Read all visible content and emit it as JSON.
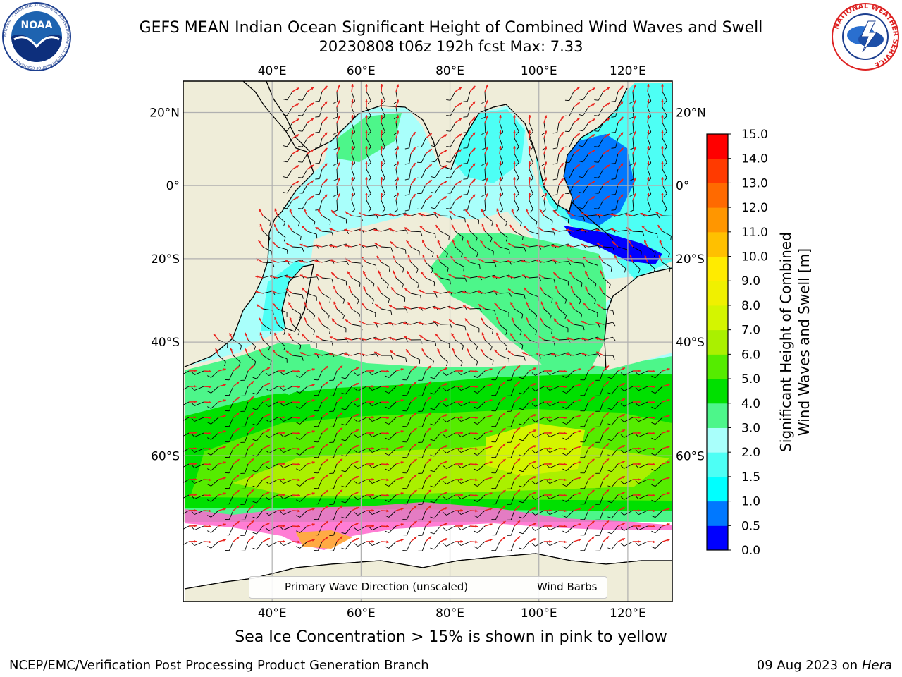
{
  "header": {
    "title_line1": "GEFS MEAN Indian Ocean Significant Height of Combined Wind Waves and Swell",
    "title_line2": "20230808 t06z 192h fcst   Max: 7.33"
  },
  "logos": {
    "noara": "NOAA",
    "nws_ring": "NATIONAL WEATHER SERVICE",
    "noaa_ring": "NATIONAL OCEANIC AND ATMOSPHERIC ADMINISTRATION · U.S. DEPARTMENT OF COMMERCE"
  },
  "map": {
    "lon_ticks": [
      "40°E",
      "60°E",
      "80°E",
      "100°E",
      "120°E"
    ],
    "lat_ticks_left": [
      "20°N",
      "0°",
      "20°S",
      "40°S",
      "60°S"
    ],
    "lat_ticks_right": [
      "20°N",
      "0°",
      "20°S",
      "40°S",
      "60°S"
    ],
    "lon_values": [
      40,
      60,
      80,
      100,
      120
    ],
    "lat_values": [
      20,
      0,
      -20,
      -40,
      -60
    ],
    "extent": {
      "lon_min": 20,
      "lon_max": 130,
      "lat_min": -75,
      "lat_max": 28
    },
    "grid": true,
    "land_color": "#efedd9",
    "arrow_color": "#e8221c",
    "barb_color": "#000000"
  },
  "legend": {
    "wave_direction_label": "Primary Wave Direction (unscaled)",
    "wind_barbs_label": "Wind Barbs",
    "placement": "bottom-center"
  },
  "colorbar": {
    "label_line1": "Significant Height of Combined",
    "label_line2": "Wind Waves and Swell [m]",
    "ticks": [
      "0.0",
      "0.5",
      "1.0",
      "1.5",
      "2.0",
      "3.0",
      "4.0",
      "5.0",
      "6.0",
      "7.0",
      "8.0",
      "9.0",
      "10.0",
      "11.0",
      "12.0",
      "13.0",
      "14.0",
      "15.0"
    ],
    "colors": [
      "#0000ff",
      "#0078ff",
      "#00ffff",
      "#4dfff5",
      "#a9fffb",
      "#4df68a",
      "#00e000",
      "#55ec00",
      "#aaf000",
      "#d4f500",
      "#f0f000",
      "#ffeb00",
      "#ffc000",
      "#ff9600",
      "#ff6a00",
      "#ff3a00",
      "#ff0000"
    ]
  },
  "footer": {
    "sea_ice_note": "Sea Ice Concentration > 15% is shown in pink to yellow",
    "producer": "NCEP/EMC/Verification Post Processing Product Generation Branch",
    "date": "09 Aug 2023 on",
    "system": "Hera"
  }
}
